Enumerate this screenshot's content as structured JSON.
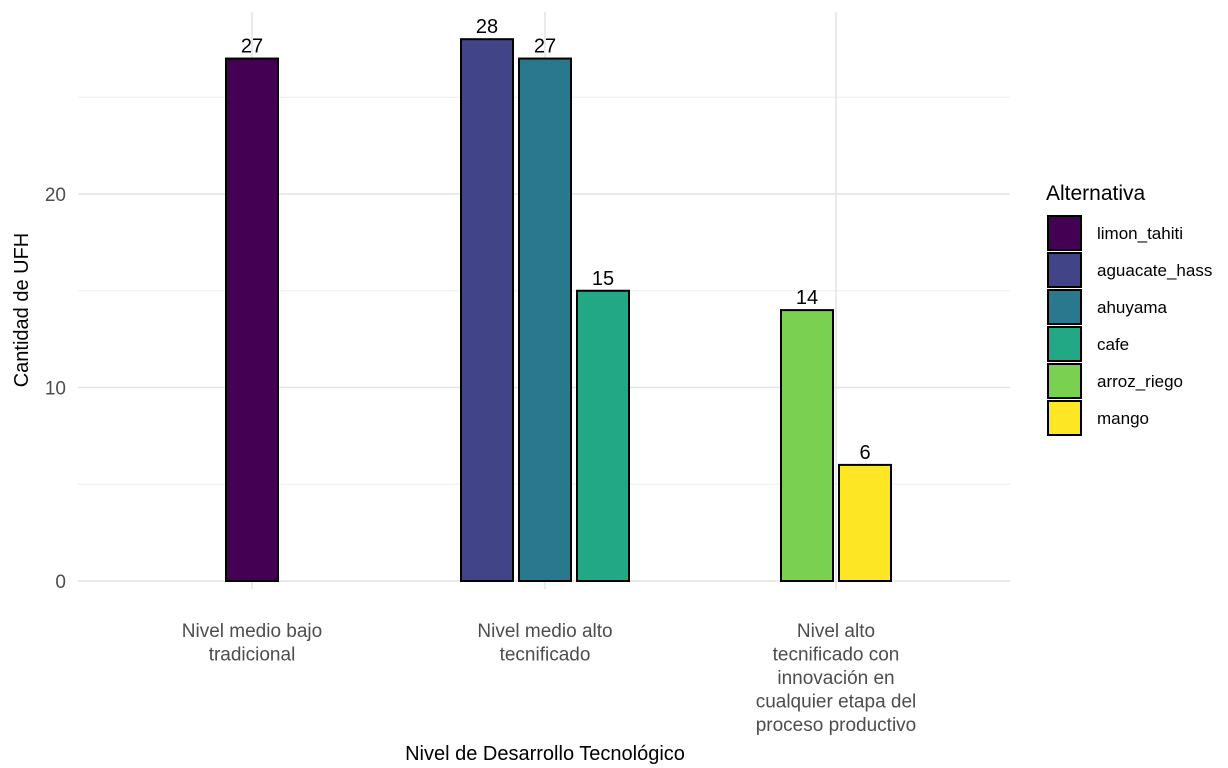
{
  "chart_data": {
    "type": "bar",
    "title": "",
    "xlabel": "Nivel de Desarrollo Tecnológico",
    "ylabel": "Cantidad de UFH",
    "ylim": [
      0,
      30
    ],
    "yticks": [
      0,
      10,
      20
    ],
    "grid": true,
    "legend": {
      "title": "Alternativa",
      "position": "right"
    },
    "categories": [
      [
        "Nivel medio bajo",
        "tradicional"
      ],
      [
        "Nivel medio alto",
        "tecnificado"
      ],
      [
        "Nivel alto",
        "tecnificado con",
        "innovación en",
        "cualquier etapa del",
        "proceso productivo"
      ]
    ],
    "series": [
      {
        "name": "limon_tahiti",
        "color": "#440154",
        "category": 0,
        "value": 27
      },
      {
        "name": "aguacate_hass",
        "color": "#414487",
        "category": 1,
        "value": 28
      },
      {
        "name": "ahuyama",
        "color": "#2A788E",
        "category": 1,
        "value": 27
      },
      {
        "name": "cafe",
        "color": "#22A884",
        "category": 1,
        "value": 15
      },
      {
        "name": "arroz_riego",
        "color": "#7AD151",
        "category": 2,
        "value": 14
      },
      {
        "name": "mango",
        "color": "#FDE725",
        "category": 2,
        "value": 6
      }
    ]
  }
}
